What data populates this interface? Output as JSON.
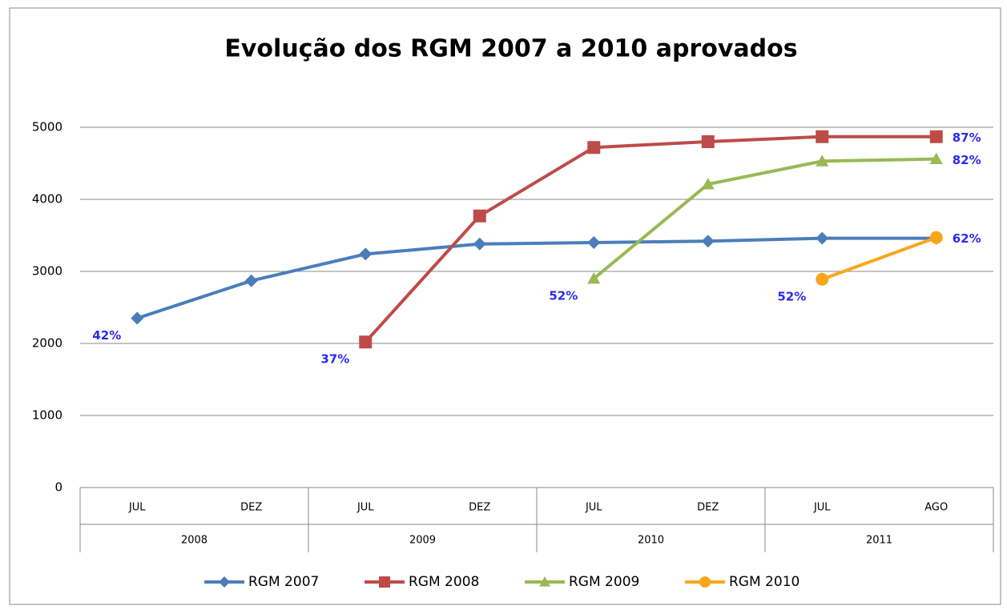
{
  "chart_data": {
    "type": "line",
    "title": "Evolução dos RGM 2007 a 2010 aprovados",
    "categories": [
      "JUL",
      "DEZ",
      "JUL",
      "DEZ",
      "JUL",
      "DEZ",
      "JUL",
      "AGO"
    ],
    "groups": [
      "2008",
      "2009",
      "2010",
      "2011"
    ],
    "ylim": [
      0,
      5000
    ],
    "yticks": [
      0,
      1000,
      2000,
      3000,
      4000,
      5000
    ],
    "grid": true,
    "legend": "bottom",
    "series": [
      {
        "name": "RGM 2007",
        "color": "#4a7ebb",
        "marker": "diamond",
        "values": [
          2350,
          2870,
          3240,
          3380,
          3400,
          3420,
          3460,
          3460
        ],
        "annotations": [
          "42%",
          null,
          null,
          null,
          null,
          null,
          null,
          null
        ]
      },
      {
        "name": "RGM 2008",
        "color": "#be4b48",
        "marker": "square",
        "values": [
          null,
          null,
          2020,
          3770,
          4720,
          4800,
          4870,
          4870
        ],
        "annotations": [
          null,
          null,
          "37%",
          null,
          null,
          null,
          null,
          "87%"
        ]
      },
      {
        "name": "RGM 2009",
        "color": "#98b954",
        "marker": "triangle",
        "values": [
          null,
          null,
          null,
          null,
          2900,
          4210,
          4530,
          4560
        ],
        "annotations": [
          null,
          null,
          null,
          null,
          "52%",
          null,
          null,
          "82%"
        ]
      },
      {
        "name": "RGM 2010",
        "color": "#f8a71b",
        "marker": "circle",
        "values": [
          null,
          null,
          null,
          null,
          null,
          null,
          2890,
          3470
        ],
        "annotations": [
          null,
          null,
          null,
          null,
          null,
          null,
          "52%",
          "62%"
        ]
      }
    ]
  }
}
